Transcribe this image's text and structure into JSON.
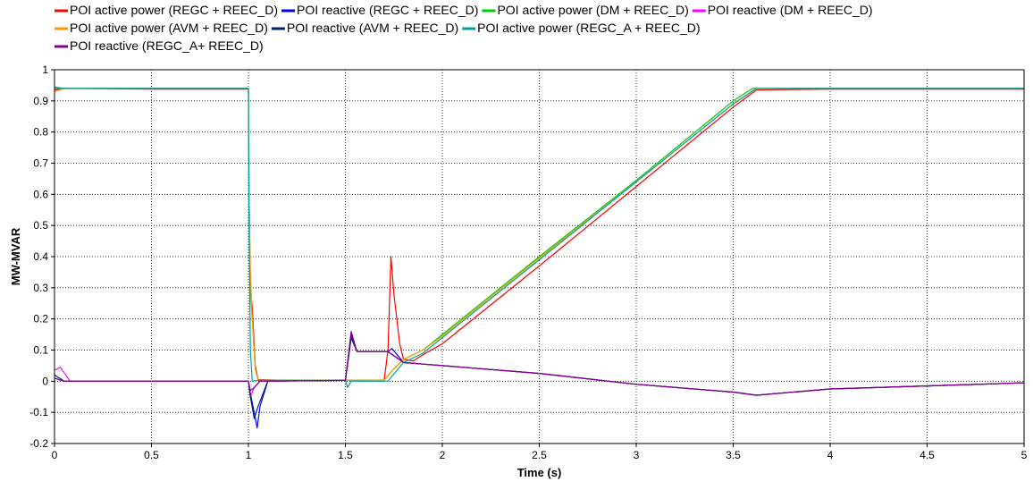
{
  "chart_data": {
    "type": "line",
    "xlabel": "Time (s)",
    "ylabel": "MW-MVAR",
    "xlim": [
      0,
      5
    ],
    "ylim": [
      -0.2,
      1
    ],
    "xticks": [
      0,
      0.5,
      1,
      1.5,
      2,
      2.5,
      3,
      3.5,
      4,
      4.5,
      5
    ],
    "yticks": [
      -0.2,
      -0.1,
      0,
      0.1,
      0.2,
      0.3,
      0.4,
      0.5,
      0.6,
      0.7,
      0.8,
      0.9,
      1
    ],
    "xtick_labels": [
      "0",
      "0.5",
      "1",
      "1.5",
      "2",
      "2.5",
      "3",
      "3.5",
      "4",
      "4.5",
      "5"
    ],
    "ytick_labels": [
      "-0.2",
      "-0.1",
      "0",
      "0.1",
      "0.2",
      "0.3",
      "0.4",
      "0.5",
      "0.6",
      "0.7",
      "0.8",
      "0.9",
      "1"
    ],
    "grid": true,
    "legend_position": "top",
    "series": [
      {
        "name": "POI active power (REGC + REEC_D)",
        "color": "#ff0000",
        "points": [
          [
            0,
            0.935
          ],
          [
            0.05,
            0.94
          ],
          [
            0.5,
            0.938
          ],
          [
            1.0,
            0.938
          ],
          [
            1.003,
            0.6
          ],
          [
            1.01,
            0.3
          ],
          [
            1.02,
            0.24
          ],
          [
            1.035,
            0.05
          ],
          [
            1.05,
            0.005
          ],
          [
            1.2,
            0.003
          ],
          [
            1.5,
            0.003
          ],
          [
            1.7,
            0.003
          ],
          [
            1.72,
            0.1
          ],
          [
            1.735,
            0.4
          ],
          [
            1.75,
            0.28
          ],
          [
            1.78,
            0.12
          ],
          [
            1.8,
            0.07
          ],
          [
            1.85,
            0.065
          ],
          [
            1.9,
            0.085
          ],
          [
            2.0,
            0.12
          ],
          [
            2.5,
            0.37
          ],
          [
            3.0,
            0.625
          ],
          [
            3.5,
            0.88
          ],
          [
            3.62,
            0.935
          ],
          [
            4.0,
            0.938
          ],
          [
            5.0,
            0.938
          ]
        ]
      },
      {
        "name": "POI reactive (REGC + REEC_D)",
        "color": "#0000ff",
        "points": [
          [
            0,
            0.01
          ],
          [
            0.05,
            0.0
          ],
          [
            0.5,
            0.0
          ],
          [
            1.0,
            0.0
          ],
          [
            1.01,
            -0.04
          ],
          [
            1.03,
            -0.1
          ],
          [
            1.045,
            -0.15
          ],
          [
            1.06,
            -0.08
          ],
          [
            1.1,
            0.0
          ],
          [
            1.5,
            0.003
          ],
          [
            1.53,
            0.15
          ],
          [
            1.56,
            0.095
          ],
          [
            1.72,
            0.095
          ],
          [
            1.74,
            0.105
          ],
          [
            1.8,
            0.06
          ],
          [
            1.9,
            0.055
          ],
          [
            2.0,
            0.05
          ],
          [
            2.5,
            0.025
          ],
          [
            3.0,
            -0.01
          ],
          [
            3.5,
            -0.035
          ],
          [
            3.62,
            -0.045
          ],
          [
            4.0,
            -0.025
          ],
          [
            4.5,
            -0.015
          ],
          [
            5.0,
            -0.005
          ]
        ]
      },
      {
        "name": "POI active power (DM + REEC_D)",
        "color": "#00cc00",
        "points": [
          [
            0,
            0.945
          ],
          [
            0.05,
            0.94
          ],
          [
            0.5,
            0.94
          ],
          [
            1.0,
            0.94
          ],
          [
            1.003,
            0.6
          ],
          [
            1.01,
            0.3
          ],
          [
            1.02,
            0.2
          ],
          [
            1.035,
            0.04
          ],
          [
            1.05,
            0.003
          ],
          [
            1.5,
            0.003
          ],
          [
            1.7,
            0.003
          ],
          [
            1.75,
            0.04
          ],
          [
            1.8,
            0.07
          ],
          [
            1.9,
            0.1
          ],
          [
            2.0,
            0.15
          ],
          [
            2.5,
            0.4
          ],
          [
            3.0,
            0.645
          ],
          [
            3.5,
            0.9
          ],
          [
            3.6,
            0.94
          ],
          [
            4.0,
            0.94
          ],
          [
            5.0,
            0.94
          ]
        ]
      },
      {
        "name": "POI reactive (DM + REEC_D)",
        "color": "#ff00ff",
        "points": [
          [
            0,
            0.035
          ],
          [
            0.03,
            0.045
          ],
          [
            0.08,
            0.0
          ],
          [
            0.5,
            0.0
          ],
          [
            1.0,
            0.0
          ],
          [
            1.01,
            -0.05
          ],
          [
            1.03,
            -0.02
          ],
          [
            1.06,
            0.0
          ],
          [
            1.5,
            0.003
          ],
          [
            1.53,
            0.14
          ],
          [
            1.56,
            0.095
          ],
          [
            1.72,
            0.095
          ],
          [
            1.8,
            0.06
          ],
          [
            1.9,
            0.055
          ],
          [
            2.0,
            0.05
          ],
          [
            2.5,
            0.025
          ],
          [
            3.0,
            -0.01
          ],
          [
            3.5,
            -0.035
          ],
          [
            3.62,
            -0.045
          ],
          [
            4.0,
            -0.025
          ],
          [
            4.5,
            -0.015
          ],
          [
            5.0,
            -0.005
          ]
        ]
      },
      {
        "name": "POI active power (AVM + REEC_D)",
        "color": "#ff9900",
        "points": [
          [
            0,
            0.93
          ],
          [
            0.05,
            0.94
          ],
          [
            0.5,
            0.94
          ],
          [
            1.0,
            0.94
          ],
          [
            1.003,
            0.6
          ],
          [
            1.01,
            0.35
          ],
          [
            1.02,
            0.2
          ],
          [
            1.035,
            0.04
          ],
          [
            1.05,
            0.003
          ],
          [
            1.5,
            0.003
          ],
          [
            1.7,
            0.003
          ],
          [
            1.75,
            0.04
          ],
          [
            1.8,
            0.07
          ],
          [
            1.9,
            0.1
          ],
          [
            2.0,
            0.145
          ],
          [
            2.5,
            0.395
          ],
          [
            3.0,
            0.64
          ],
          [
            3.5,
            0.89
          ],
          [
            3.62,
            0.94
          ],
          [
            4.0,
            0.94
          ],
          [
            5.0,
            0.94
          ]
        ]
      },
      {
        "name": "POI reactive (AVM + REEC_D)",
        "color": "#002266",
        "points": [
          [
            0,
            0.02
          ],
          [
            0.05,
            0.0
          ],
          [
            0.5,
            0.0
          ],
          [
            1.0,
            0.0
          ],
          [
            1.01,
            -0.05
          ],
          [
            1.03,
            -0.12
          ],
          [
            1.05,
            -0.08
          ],
          [
            1.1,
            0.0
          ],
          [
            1.5,
            0.003
          ],
          [
            1.53,
            0.14
          ],
          [
            1.56,
            0.095
          ],
          [
            1.72,
            0.095
          ],
          [
            1.8,
            0.06
          ],
          [
            1.9,
            0.055
          ],
          [
            2.0,
            0.05
          ],
          [
            2.5,
            0.025
          ],
          [
            3.0,
            -0.01
          ],
          [
            3.5,
            -0.035
          ],
          [
            3.62,
            -0.045
          ],
          [
            4.0,
            -0.025
          ],
          [
            4.5,
            -0.015
          ],
          [
            5.0,
            -0.005
          ]
        ]
      },
      {
        "name": "POI active power (REGC_A + REEC_D)",
        "color": "#00a0a0",
        "points": [
          [
            0,
            0.94
          ],
          [
            0.05,
            0.94
          ],
          [
            0.5,
            0.94
          ],
          [
            1.0,
            0.94
          ],
          [
            1.003,
            0.5
          ],
          [
            1.01,
            0.1
          ],
          [
            1.02,
            0.0
          ],
          [
            1.05,
            0.003
          ],
          [
            1.5,
            0.003
          ],
          [
            1.51,
            -0.02
          ],
          [
            1.53,
            0.0
          ],
          [
            1.7,
            0.0
          ],
          [
            1.72,
            0.0
          ],
          [
            1.8,
            0.06
          ],
          [
            1.9,
            0.09
          ],
          [
            2.0,
            0.14
          ],
          [
            2.5,
            0.39
          ],
          [
            3.0,
            0.64
          ],
          [
            3.5,
            0.89
          ],
          [
            3.62,
            0.94
          ],
          [
            4.0,
            0.94
          ],
          [
            5.0,
            0.94
          ]
        ]
      },
      {
        "name": "POI reactive (REGC_A+ REEC_D)",
        "color": "#880088",
        "points": [
          [
            0,
            0.01
          ],
          [
            0.05,
            0.0
          ],
          [
            0.5,
            0.0
          ],
          [
            1.0,
            0.0
          ],
          [
            1.01,
            -0.03
          ],
          [
            1.03,
            -0.02
          ],
          [
            1.06,
            0.0
          ],
          [
            1.5,
            0.003
          ],
          [
            1.53,
            0.16
          ],
          [
            1.56,
            0.095
          ],
          [
            1.72,
            0.095
          ],
          [
            1.8,
            0.06
          ],
          [
            1.9,
            0.055
          ],
          [
            2.0,
            0.05
          ],
          [
            2.5,
            0.025
          ],
          [
            3.0,
            -0.01
          ],
          [
            3.5,
            -0.035
          ],
          [
            3.62,
            -0.045
          ],
          [
            4.0,
            -0.025
          ],
          [
            4.5,
            -0.015
          ],
          [
            5.0,
            -0.005
          ]
        ]
      }
    ]
  }
}
